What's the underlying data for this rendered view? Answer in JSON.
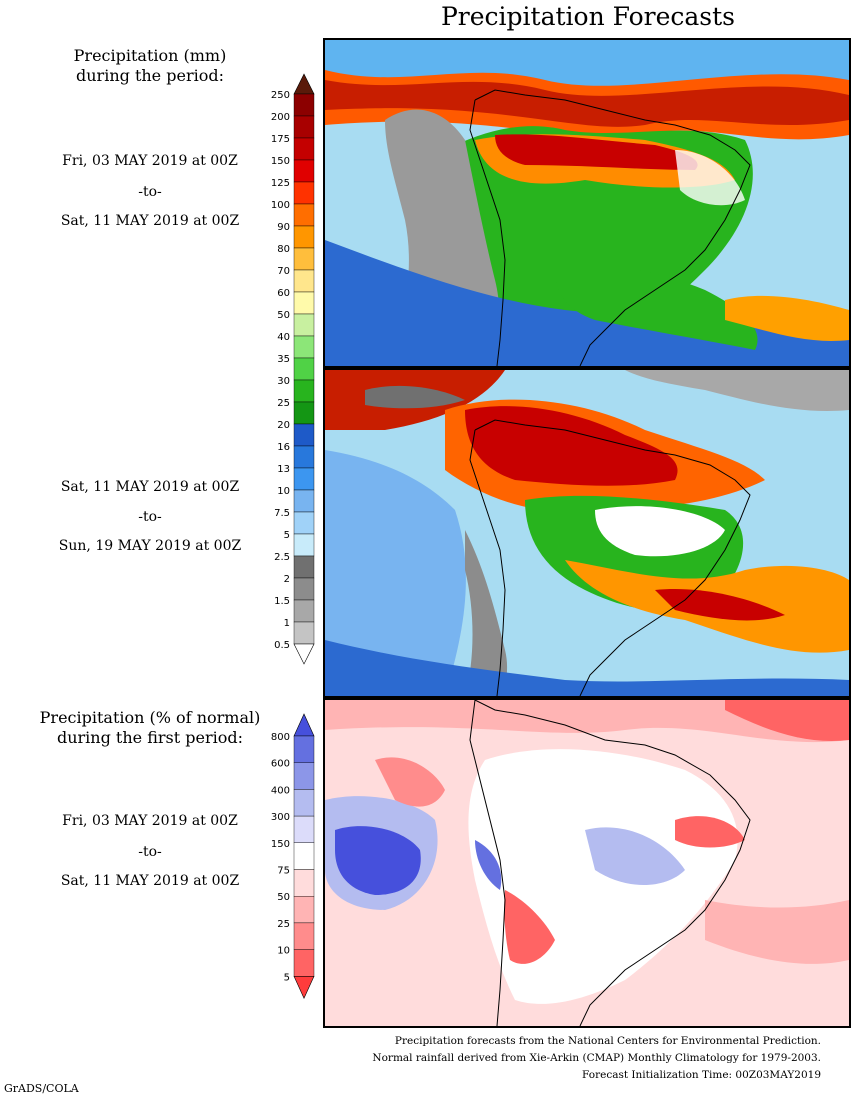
{
  "title": "Precipitation Forecasts",
  "panel1": {
    "heading_line1": "Precipitation (mm)",
    "heading_line2": "during the period:",
    "start": "Fri, 03 MAY 2019 at 00Z",
    "to": "-to-",
    "end": "Sat, 11 MAY 2019 at 00Z"
  },
  "panel2": {
    "start": "Sat, 11 MAY 2019 at 00Z",
    "to": "-to-",
    "end": "Sun, 19 MAY 2019 at 00Z"
  },
  "panel3": {
    "heading_line1": "Precipitation (% of normal)",
    "heading_line2": "during the first period:",
    "start": "Fri, 03 MAY 2019 at 00Z",
    "to": "-to-",
    "end": "Sat, 11 MAY 2019 at 00Z"
  },
  "precip_colorbar": {
    "labels": [
      "250",
      "200",
      "175",
      "150",
      "125",
      "100",
      "90",
      "80",
      "70",
      "60",
      "50",
      "40",
      "35",
      "30",
      "25",
      "20",
      "16",
      "13",
      "10",
      "7.5",
      "5",
      "2.5",
      "2",
      "1.5",
      "1",
      "0.5"
    ],
    "colors": [
      "#5a1a0a",
      "#8c0000",
      "#a80000",
      "#c40000",
      "#e00000",
      "#ff3200",
      "#ff6e00",
      "#ff9600",
      "#ffbe3c",
      "#ffe68c",
      "#fffaaa",
      "#c8f0a0",
      "#8ce678",
      "#50d246",
      "#28b41e",
      "#149614",
      "#1e5ac8",
      "#2878dc",
      "#3c96f0",
      "#78b4f0",
      "#a0d2f8",
      "#c8ebfa",
      "#707070",
      "#8c8c8c",
      "#a8a8a8",
      "#c4c4c4"
    ]
  },
  "pct_colorbar": {
    "labels": [
      "800",
      "600",
      "400",
      "300",
      "150",
      "75",
      "50",
      "25",
      "10",
      "5"
    ],
    "colors": [
      "#4650dc",
      "#6470e0",
      "#8c96e8",
      "#b4bcf0",
      "#dcdcfa",
      "#ffffff",
      "#ffdcdc",
      "#ffb4b4",
      "#ff8c8c",
      "#ff6464",
      "#ff3c3c"
    ]
  },
  "footer": {
    "line1": "Precipitation forecasts from the National Centers for Environmental Prediction.",
    "line2": "Normal rainfall derived from Xie-Arkin (CMAP) Monthly Climatology for 1979-2003.",
    "line3": "Forecast Initialization Time: 00Z03MAY2019"
  },
  "credit": "GrADS/COLA"
}
